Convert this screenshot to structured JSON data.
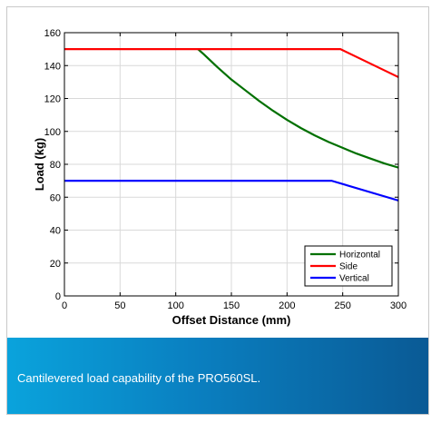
{
  "caption": "Cantilevered load capability of the PRO560SL.",
  "colors": {
    "caption_gradient_start": "#0aa3dc",
    "caption_gradient_end": "#0a5a95",
    "horizontal": "#007000",
    "side": "#ff0000",
    "vertical": "#0000ff"
  },
  "chart_data": {
    "type": "line",
    "title": "",
    "xlabel": "Offset Distance (mm)",
    "ylabel": "Load (kg)",
    "xlim": [
      0,
      300
    ],
    "ylim": [
      0,
      160
    ],
    "xticks": [
      0,
      50,
      100,
      150,
      200,
      250,
      300
    ],
    "yticks": [
      0,
      20,
      40,
      60,
      80,
      100,
      120,
      140,
      160
    ],
    "grid": true,
    "legend_position": "bottom-right",
    "series": [
      {
        "name": "Horizontal",
        "color": "#007000",
        "x": [
          120,
          125,
          137.5,
          150,
          162.5,
          175,
          187.5,
          200,
          212.5,
          225,
          237.5,
          250,
          262.5,
          275,
          287.5,
          300
        ],
        "y": [
          150,
          147,
          139,
          131.5,
          125,
          118.5,
          112.5,
          107,
          102,
          97.5,
          93.5,
          90,
          86.5,
          83.5,
          80.5,
          78
        ]
      },
      {
        "name": "Side",
        "color": "#ff0000",
        "x": [
          0,
          248,
          300
        ],
        "y": [
          150,
          150,
          133
        ]
      },
      {
        "name": "Vertical",
        "color": "#0000ff",
        "x": [
          0,
          240,
          300
        ],
        "y": [
          70,
          70,
          58
        ]
      }
    ]
  }
}
